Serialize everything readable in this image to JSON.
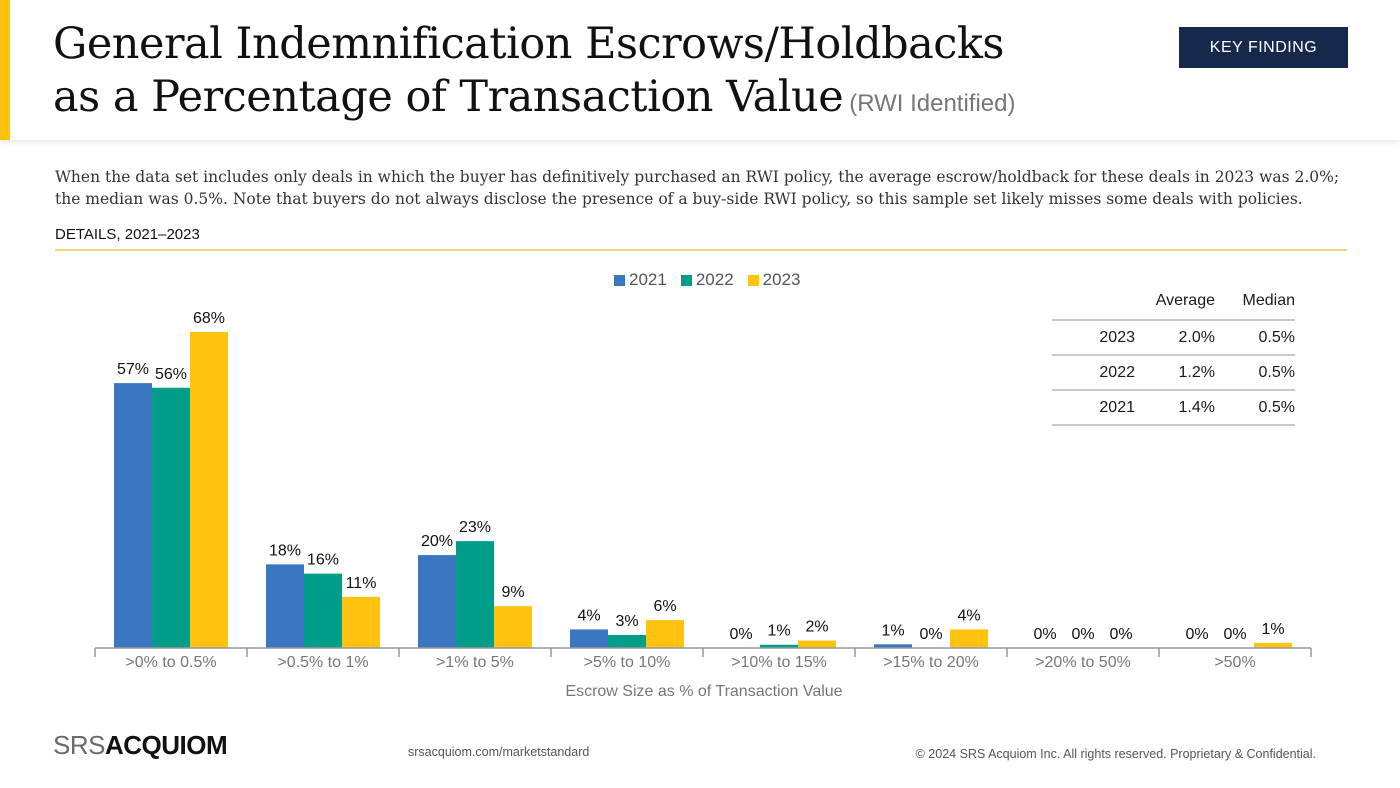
{
  "header": {
    "title_line1": "General Indemnification Escrows/Holdbacks",
    "title_line2": "as a Percentage of Transaction Value",
    "title_suffix": "(RWI Identified)",
    "badge": "KEY FINDING"
  },
  "description": "When the data set includes only deals in which the buyer has definitively purchased an RWI policy, the average escrow/holdback for these deals in 2023 was 2.0%; the median was 0.5%. Note that buyers do not always disclose the presence of a buy-side RWI policy, so this sample set likely misses some deals with policies.",
  "details_label": "DETAILS, 2021–2023",
  "stats_table": {
    "headers": [
      "",
      "Average",
      "Median"
    ],
    "rows": [
      {
        "year": "2023",
        "average": "2.0%",
        "median": "0.5%"
      },
      {
        "year": "2022",
        "average": "1.2%",
        "median": "0.5%"
      },
      {
        "year": "2021",
        "average": "1.4%",
        "median": "0.5%"
      }
    ]
  },
  "chart_data": {
    "type": "bar",
    "title": "",
    "xlabel": "Escrow Size as % of Transaction Value",
    "ylabel": "",
    "ylim": [
      0,
      70
    ],
    "grid": false,
    "legend_position": "top-center",
    "categories": [
      ">0% to 0.5%",
      ">0.5% to 1%",
      ">1% to 5%",
      ">5% to 10%",
      ">10% to 15%",
      ">15% to 20%",
      ">20% to 50%",
      ">50%"
    ],
    "series": [
      {
        "name": "2021",
        "color": "#3B77C0",
        "values": [
          57,
          18,
          20,
          4,
          0,
          1,
          0,
          0
        ]
      },
      {
        "name": "2022",
        "color": "#009E89",
        "values": [
          56,
          16,
          23,
          3,
          1,
          0,
          0,
          0
        ]
      },
      {
        "name": "2023",
        "color": "#FFC20E",
        "values": [
          68,
          11,
          9,
          6,
          2,
          4,
          0,
          1
        ]
      }
    ],
    "bar_heights_pct": [
      [
        57,
        18,
        20,
        4,
        0,
        0.8,
        0,
        0
      ],
      [
        56,
        16,
        23,
        2.8,
        0.7,
        0,
        0,
        0
      ],
      [
        68,
        11,
        9,
        6,
        1.6,
        4,
        0,
        1.1
      ]
    ]
  },
  "footer": {
    "logo_srs": "SRS",
    "logo_acquiom": "ACQUIOM",
    "url": "srsacquiom.com/marketstandard",
    "copyright": "© 2024 SRS Acquiom Inc. All rights reserved. Proprietary & Confidential."
  }
}
